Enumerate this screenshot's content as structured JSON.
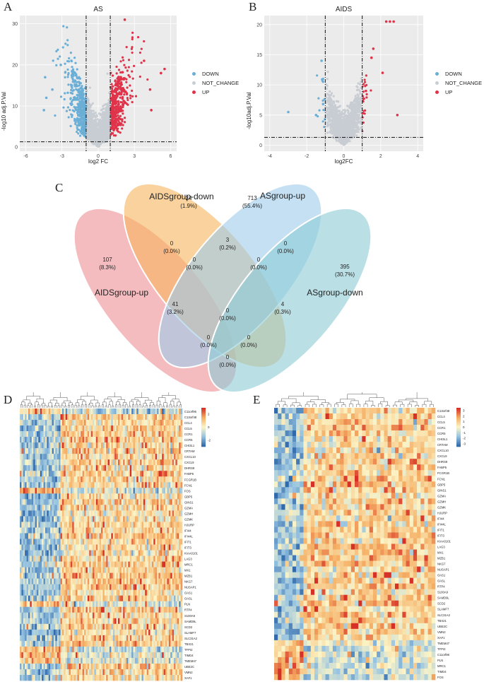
{
  "panels": {
    "A": {
      "letter": "A",
      "title": "AS",
      "xlabel": "log2 FC",
      "ylabel": "-log10 adj.P.Val",
      "xticks": [
        "-6",
        "-3",
        "0",
        "3",
        "6"
      ],
      "yticks": [
        "0",
        "10",
        "20",
        "30"
      ]
    },
    "B": {
      "letter": "B",
      "title": "AIDS",
      "xlabel": "log2FC",
      "ylabel": "-log10adj.P.Val",
      "xticks": [
        "-4",
        "-2",
        "0",
        "2",
        "4"
      ],
      "yticks": [
        "0",
        "5",
        "10",
        "15",
        "20"
      ]
    },
    "C": {
      "letter": "C"
    },
    "D": {
      "letter": "D"
    },
    "E": {
      "letter": "E"
    }
  },
  "legend": {
    "items": [
      {
        "label": "DOWN",
        "color": "#6baed6"
      },
      {
        "label": "NOT_CHANGE",
        "color": "#c8cdd3"
      },
      {
        "label": "UP",
        "color": "#e0334a"
      }
    ]
  },
  "venn": {
    "sets": [
      {
        "name": "AIDSgroup-up",
        "color": "#ef8f96"
      },
      {
        "name": "AIDSgroup-down",
        "color": "#f6b45e"
      },
      {
        "name": "ASgroup-up",
        "color": "#9ccbe9"
      },
      {
        "name": "ASgroup-down",
        "color": "#8ccbd6"
      }
    ],
    "regions": [
      {
        "count": "24",
        "pct": "(1.9%)"
      },
      {
        "count": "713",
        "pct": "(55.4%)"
      },
      {
        "count": "3",
        "pct": "(0.2%)"
      },
      {
        "count": "0",
        "pct": "(0.0%)"
      },
      {
        "count": "0",
        "pct": "(0.0%)"
      },
      {
        "count": "107",
        "pct": "(8.3%)"
      },
      {
        "count": "395",
        "pct": "(30.7%)"
      },
      {
        "count": "0",
        "pct": "(0.0%)"
      },
      {
        "count": "0",
        "pct": "(0.0%)"
      },
      {
        "count": "41",
        "pct": "(3.2%)"
      },
      {
        "count": "0",
        "pct": "(0.0%)"
      },
      {
        "count": "4",
        "pct": "(0.3%)"
      },
      {
        "count": "0",
        "pct": "(0.0%)"
      },
      {
        "count": "0",
        "pct": "(0.0%)"
      },
      {
        "count": "0",
        "pct": "(0.0%)"
      }
    ]
  },
  "heatmapD": {
    "scale": [
      "2",
      "0",
      "-2"
    ],
    "genes": [
      "C11orf96",
      "C13orf48",
      "CCL4",
      "CCL5",
      "CCR1",
      "CCR5",
      "CHI3L1",
      "CRTAM",
      "CXCL10",
      "CXCL9",
      "DHRS9",
      "FABP5",
      "FCGR1B",
      "FCN1",
      "FOS",
      "GBP5",
      "GINS1",
      "GZMA",
      "GZMH",
      "GZMK",
      "HJURP",
      "IFI44",
      "IFI44L",
      "IFIT1",
      "IFIT3",
      "KIAA0101",
      "LAG3",
      "MRC1",
      "MX1",
      "MZB1",
      "NKG7",
      "NUSAP1",
      "OAS1",
      "OASL",
      "PLN",
      "RTP4",
      "S100A9",
      "SAMD9L",
      "SCD2",
      "SLAMF7",
      "SLC31A2",
      "TBX21",
      "TFPI2",
      "TIMD4",
      "TMEM47",
      "UBE2C",
      "VMN2",
      "XAF1"
    ]
  },
  "heatmapE": {
    "scale": [
      "3",
      "2",
      "1",
      "0",
      "-1",
      "-2",
      "-3"
    ],
    "genes": [
      "C13orf48",
      "CCL4",
      "CCL5",
      "CCR1",
      "CCR5",
      "CHI3L1",
      "CRTAM",
      "CXCL10",
      "CXCL9",
      "DHRS9",
      "FABP5",
      "FCGR1B",
      "FCN1",
      "GBP5",
      "GINS1",
      "GZMA",
      "GZMH",
      "GZMK",
      "HJURP",
      "IFI44",
      "IFI44L",
      "IFIT1",
      "IFIT3",
      "KIAA0101",
      "LAG3",
      "MX1",
      "MZB1",
      "NKG7",
      "NUSAP1",
      "OAS1",
      "OASL",
      "RTP4",
      "S100A9",
      "SAMD9L",
      "SCD2",
      "SLAMF7",
      "SLC31A2",
      "TBX21",
      "UBE2C",
      "VMN2",
      "XAF1",
      "TMEM47",
      "TFPI2",
      "C11orf96",
      "PLN",
      "MRC1",
      "TIMD4",
      "FOS"
    ]
  },
  "colors": {
    "up": "#e0334a",
    "down": "#6baed6",
    "nc": "#c8cdd3"
  }
}
